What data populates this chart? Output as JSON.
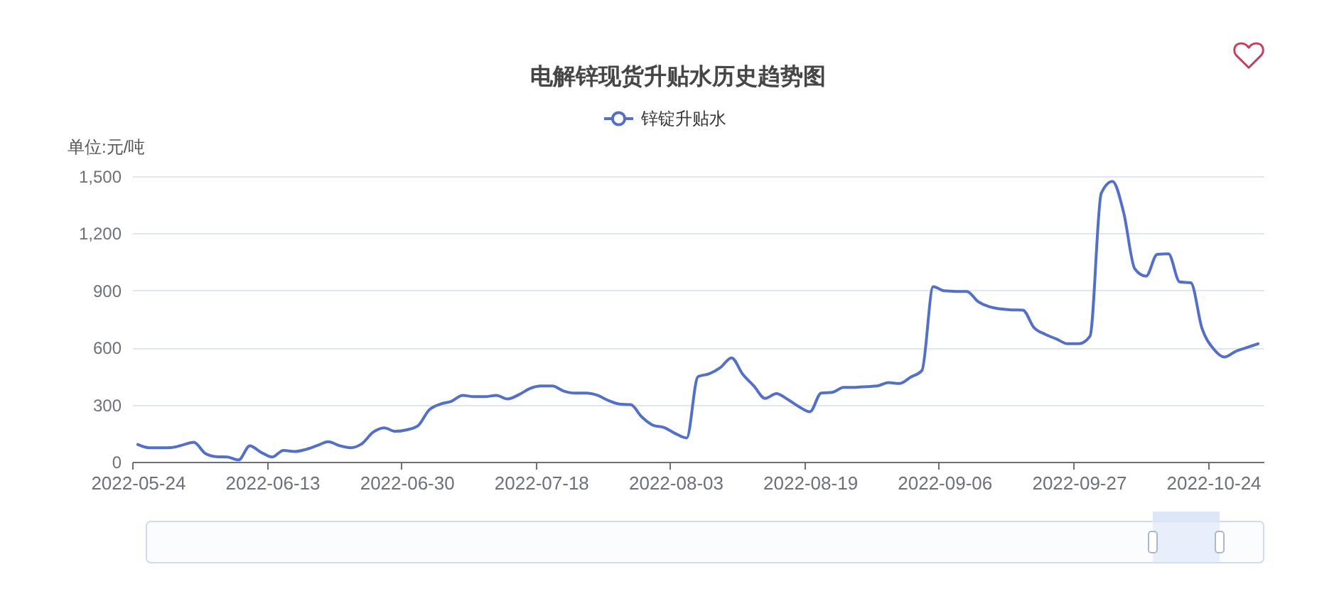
{
  "chart_data": {
    "type": "line",
    "title": "电解锌现货升贴水历史趋势图",
    "ylabel": "单位:元/吨",
    "categories": [
      "2022-05-24",
      null,
      null,
      null,
      null,
      null,
      null,
      null,
      null,
      null,
      null,
      null,
      "2022-06-13",
      null,
      null,
      null,
      null,
      null,
      null,
      null,
      null,
      null,
      null,
      null,
      "2022-06-30",
      null,
      null,
      null,
      null,
      null,
      null,
      null,
      null,
      null,
      null,
      null,
      "2022-07-18",
      null,
      null,
      null,
      null,
      null,
      null,
      null,
      null,
      null,
      null,
      null,
      "2022-08-03",
      null,
      null,
      null,
      null,
      null,
      null,
      null,
      null,
      null,
      null,
      null,
      "2022-08-19",
      null,
      null,
      null,
      null,
      null,
      null,
      null,
      null,
      null,
      null,
      null,
      "2022-09-06",
      null,
      null,
      null,
      null,
      null,
      null,
      null,
      null,
      null,
      null,
      null,
      "2022-09-27",
      null,
      null,
      null,
      null,
      null,
      null,
      null,
      null,
      null,
      null,
      null,
      "2022-10-24",
      null,
      null,
      null,
      null
    ],
    "series": [
      {
        "name": "锌锭升贴水",
        "color": "#5470c6",
        "values": [
          91,
          74,
          74,
          75,
          88,
          103,
          45,
          27,
          25,
          10,
          84,
          50,
          25,
          60,
          54,
          65,
          85,
          105,
          85,
          74,
          95,
          155,
          178,
          160,
          168,
          189,
          272,
          303,
          318,
          349,
          342,
          342,
          349,
          330,
          352,
          385,
          398,
          398,
          372,
          361,
          361,
          350,
          322,
          303,
          300,
          235,
          192,
          180,
          148,
          125,
          447,
          462,
          495,
          546,
          460,
          398,
          333,
          358,
          328,
          290,
          263,
          361,
          365,
          391,
          391,
          395,
          398,
          416,
          411,
          445,
          480,
          920,
          898,
          895,
          895,
          842,
          815,
          803,
          798,
          797,
          705,
          670,
          645,
          620,
          620,
          660,
          1410,
          1473,
          1310,
          1013,
          975,
          1090,
          1092,
          945,
          940,
          700,
          595,
          550,
          580,
          600,
          620
        ]
      }
    ],
    "ylim": [
      0,
      1500
    ],
    "yticks": [
      0,
      300,
      600,
      900,
      {
        "value": 1200,
        "label": "1,200"
      },
      {
        "value": 1500,
        "label": "1,500"
      }
    ],
    "grid": "y",
    "legend": "top"
  }
}
